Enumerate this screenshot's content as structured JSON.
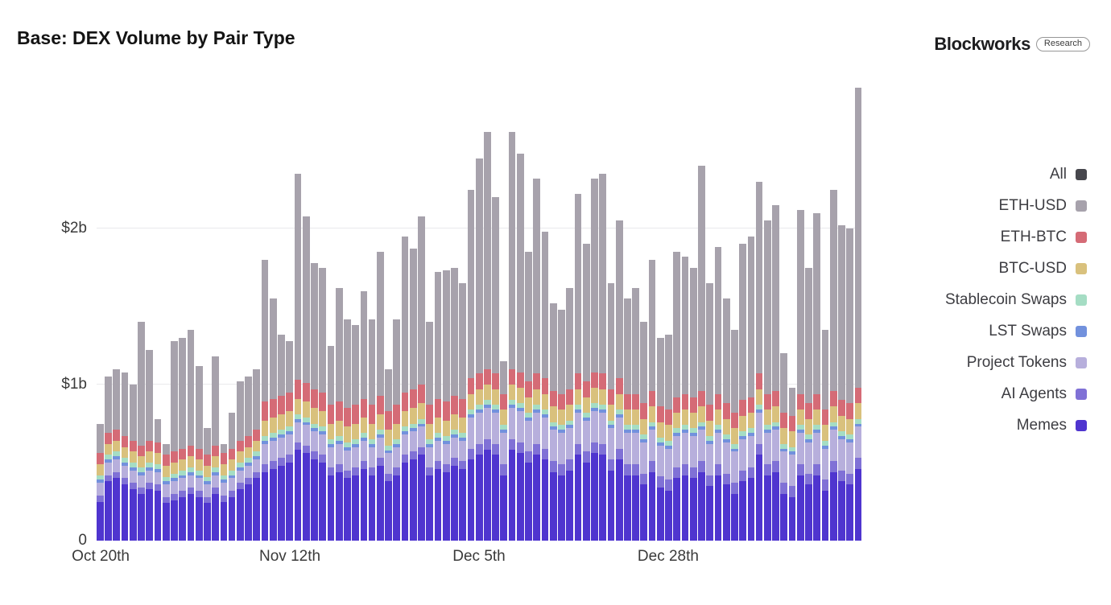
{
  "header": {
    "title": "Base: DEX Volume by Pair Type",
    "brand": "Blockworks",
    "brand_badge": "Research"
  },
  "legend": {
    "items": [
      {
        "label": "All",
        "color": "#47474d"
      },
      {
        "label": "ETH-USD",
        "color": "#a7a2ac"
      },
      {
        "label": "ETH-BTC",
        "color": "#d56b76"
      },
      {
        "label": "BTC-USD",
        "color": "#d9c17d"
      },
      {
        "label": "Stablecoin Swaps",
        "color": "#a5ddc4"
      },
      {
        "label": "LST Swaps",
        "color": "#7291dd"
      },
      {
        "label": "Project Tokens",
        "color": "#b7afdc"
      },
      {
        "label": "AI Agents",
        "color": "#8071d6"
      },
      {
        "label": "Memes",
        "color": "#4f35cf"
      }
    ]
  },
  "chart_data": {
    "type": "bar",
    "stacked": true,
    "title": "Base: DEX Volume by Pair Type",
    "unit": "USD billions per day",
    "ylim": [
      0,
      3
    ],
    "grid": true,
    "legend_position": "right",
    "y_ticks": [
      {
        "value": 0,
        "label": "0"
      },
      {
        "value": 1,
        "label": "$1b"
      },
      {
        "value": 2,
        "label": "$2b"
      }
    ],
    "x_count": 93,
    "x_ticks": [
      {
        "index": 0,
        "label": "Oct 20th"
      },
      {
        "index": 23,
        "label": "Nov 12th"
      },
      {
        "index": 46,
        "label": "Dec 5th"
      },
      {
        "index": 69,
        "label": "Dec 28th"
      }
    ],
    "stack_order_bottom_to_top": [
      "Memes",
      "AI Agents",
      "Project Tokens",
      "LST Swaps",
      "Stablecoin Swaps",
      "BTC-USD",
      "ETH-BTC",
      "ETH-USD"
    ],
    "series": [
      {
        "name": "Memes",
        "color": "#4f35cf",
        "values": [
          0.25,
          0.38,
          0.4,
          0.36,
          0.33,
          0.3,
          0.33,
          0.32,
          0.24,
          0.26,
          0.28,
          0.3,
          0.28,
          0.24,
          0.3,
          0.25,
          0.28,
          0.33,
          0.36,
          0.4,
          0.44,
          0.46,
          0.48,
          0.5,
          0.58,
          0.56,
          0.52,
          0.5,
          0.42,
          0.44,
          0.4,
          0.42,
          0.46,
          0.42,
          0.48,
          0.38,
          0.42,
          0.5,
          0.52,
          0.55,
          0.42,
          0.46,
          0.44,
          0.48,
          0.46,
          0.52,
          0.55,
          0.58,
          0.55,
          0.42,
          0.58,
          0.56,
          0.5,
          0.55,
          0.52,
          0.44,
          0.42,
          0.45,
          0.55,
          0.5,
          0.56,
          0.55,
          0.45,
          0.52,
          0.42,
          0.42,
          0.36,
          0.44,
          0.34,
          0.32,
          0.4,
          0.42,
          0.4,
          0.44,
          0.35,
          0.42,
          0.36,
          0.3,
          0.38,
          0.4,
          0.55,
          0.42,
          0.44,
          0.3,
          0.28,
          0.42,
          0.36,
          0.42,
          0.32,
          0.44,
          0.38,
          0.36,
          0.46
        ]
      },
      {
        "name": "AI Agents",
        "color": "#8071d6",
        "values": [
          0.04,
          0.04,
          0.04,
          0.04,
          0.04,
          0.04,
          0.04,
          0.04,
          0.04,
          0.04,
          0.04,
          0.04,
          0.04,
          0.04,
          0.04,
          0.04,
          0.04,
          0.04,
          0.04,
          0.04,
          0.05,
          0.05,
          0.05,
          0.05,
          0.05,
          0.05,
          0.05,
          0.05,
          0.05,
          0.05,
          0.05,
          0.05,
          0.05,
          0.05,
          0.05,
          0.05,
          0.05,
          0.05,
          0.05,
          0.05,
          0.05,
          0.05,
          0.05,
          0.05,
          0.05,
          0.07,
          0.07,
          0.07,
          0.07,
          0.07,
          0.07,
          0.07,
          0.07,
          0.07,
          0.07,
          0.07,
          0.07,
          0.07,
          0.07,
          0.07,
          0.07,
          0.07,
          0.07,
          0.07,
          0.07,
          0.07,
          0.07,
          0.07,
          0.07,
          0.07,
          0.07,
          0.07,
          0.07,
          0.07,
          0.07,
          0.07,
          0.07,
          0.07,
          0.07,
          0.07,
          0.07,
          0.07,
          0.07,
          0.07,
          0.07,
          0.07,
          0.07,
          0.07,
          0.07,
          0.07,
          0.07,
          0.07,
          0.07
        ]
      },
      {
        "name": "Project Tokens",
        "color": "#b7afdc",
        "values": [
          0.08,
          0.08,
          0.08,
          0.08,
          0.08,
          0.08,
          0.08,
          0.08,
          0.08,
          0.08,
          0.08,
          0.08,
          0.08,
          0.08,
          0.08,
          0.08,
          0.08,
          0.08,
          0.08,
          0.08,
          0.13,
          0.13,
          0.13,
          0.13,
          0.13,
          0.13,
          0.13,
          0.13,
          0.13,
          0.13,
          0.13,
          0.13,
          0.13,
          0.13,
          0.13,
          0.13,
          0.13,
          0.13,
          0.13,
          0.13,
          0.13,
          0.13,
          0.13,
          0.13,
          0.13,
          0.2,
          0.2,
          0.2,
          0.2,
          0.2,
          0.2,
          0.2,
          0.2,
          0.2,
          0.2,
          0.2,
          0.2,
          0.2,
          0.2,
          0.2,
          0.2,
          0.2,
          0.2,
          0.2,
          0.2,
          0.2,
          0.2,
          0.2,
          0.2,
          0.2,
          0.2,
          0.2,
          0.2,
          0.2,
          0.2,
          0.2,
          0.2,
          0.2,
          0.2,
          0.2,
          0.2,
          0.2,
          0.2,
          0.2,
          0.2,
          0.2,
          0.2,
          0.2,
          0.2,
          0.2,
          0.2,
          0.2,
          0.2
        ]
      },
      {
        "name": "LST Swaps",
        "color": "#7291dd",
        "values": [
          0.02,
          0.02,
          0.02,
          0.02,
          0.02,
          0.02,
          0.02,
          0.02,
          0.02,
          0.02,
          0.02,
          0.02,
          0.02,
          0.02,
          0.02,
          0.02,
          0.02,
          0.02,
          0.02,
          0.02,
          0.02,
          0.02,
          0.02,
          0.02,
          0.02,
          0.02,
          0.02,
          0.02,
          0.02,
          0.02,
          0.02,
          0.02,
          0.02,
          0.02,
          0.02,
          0.02,
          0.02,
          0.02,
          0.02,
          0.02,
          0.02,
          0.02,
          0.02,
          0.02,
          0.02,
          0.02,
          0.02,
          0.02,
          0.02,
          0.02,
          0.02,
          0.02,
          0.02,
          0.02,
          0.02,
          0.02,
          0.02,
          0.02,
          0.02,
          0.02,
          0.02,
          0.02,
          0.02,
          0.02,
          0.02,
          0.02,
          0.02,
          0.02,
          0.02,
          0.02,
          0.02,
          0.02,
          0.02,
          0.02,
          0.02,
          0.02,
          0.02,
          0.02,
          0.02,
          0.02,
          0.02,
          0.02,
          0.02,
          0.02,
          0.02,
          0.02,
          0.02,
          0.02,
          0.02,
          0.02,
          0.02,
          0.02,
          0.02
        ]
      },
      {
        "name": "Stablecoin Swaps",
        "color": "#a5ddc4",
        "values": [
          0.03,
          0.03,
          0.03,
          0.03,
          0.03,
          0.03,
          0.03,
          0.03,
          0.03,
          0.03,
          0.03,
          0.03,
          0.03,
          0.03,
          0.03,
          0.03,
          0.03,
          0.03,
          0.03,
          0.03,
          0.03,
          0.03,
          0.03,
          0.03,
          0.03,
          0.03,
          0.03,
          0.03,
          0.03,
          0.03,
          0.03,
          0.03,
          0.03,
          0.03,
          0.03,
          0.03,
          0.03,
          0.03,
          0.03,
          0.03,
          0.03,
          0.03,
          0.03,
          0.03,
          0.03,
          0.03,
          0.03,
          0.03,
          0.03,
          0.03,
          0.03,
          0.03,
          0.03,
          0.03,
          0.03,
          0.03,
          0.03,
          0.03,
          0.03,
          0.03,
          0.03,
          0.03,
          0.03,
          0.03,
          0.03,
          0.03,
          0.03,
          0.03,
          0.03,
          0.03,
          0.03,
          0.03,
          0.03,
          0.03,
          0.03,
          0.03,
          0.03,
          0.03,
          0.03,
          0.03,
          0.03,
          0.03,
          0.03,
          0.03,
          0.03,
          0.03,
          0.03,
          0.03,
          0.03,
          0.03,
          0.03,
          0.03,
          0.03
        ]
      },
      {
        "name": "BTC-USD",
        "color": "#d9c17d",
        "values": [
          0.07,
          0.07,
          0.07,
          0.07,
          0.07,
          0.07,
          0.07,
          0.07,
          0.07,
          0.07,
          0.07,
          0.07,
          0.07,
          0.07,
          0.07,
          0.07,
          0.07,
          0.07,
          0.07,
          0.07,
          0.1,
          0.1,
          0.1,
          0.1,
          0.1,
          0.1,
          0.1,
          0.1,
          0.1,
          0.1,
          0.1,
          0.1,
          0.1,
          0.1,
          0.1,
          0.1,
          0.1,
          0.1,
          0.1,
          0.1,
          0.1,
          0.1,
          0.1,
          0.1,
          0.1,
          0.1,
          0.1,
          0.1,
          0.1,
          0.1,
          0.1,
          0.1,
          0.1,
          0.1,
          0.1,
          0.1,
          0.1,
          0.1,
          0.1,
          0.1,
          0.1,
          0.1,
          0.1,
          0.1,
          0.1,
          0.1,
          0.1,
          0.1,
          0.1,
          0.1,
          0.1,
          0.1,
          0.1,
          0.1,
          0.1,
          0.1,
          0.1,
          0.1,
          0.1,
          0.1,
          0.1,
          0.1,
          0.1,
          0.1,
          0.1,
          0.1,
          0.1,
          0.1,
          0.1,
          0.1,
          0.1,
          0.1,
          0.1
        ]
      },
      {
        "name": "ETH-BTC",
        "color": "#d56b76",
        "values": [
          0.07,
          0.07,
          0.07,
          0.07,
          0.07,
          0.07,
          0.07,
          0.07,
          0.07,
          0.07,
          0.07,
          0.07,
          0.07,
          0.07,
          0.07,
          0.07,
          0.07,
          0.07,
          0.07,
          0.07,
          0.12,
          0.12,
          0.12,
          0.12,
          0.12,
          0.12,
          0.12,
          0.12,
          0.12,
          0.12,
          0.12,
          0.12,
          0.12,
          0.12,
          0.12,
          0.12,
          0.12,
          0.12,
          0.12,
          0.12,
          0.12,
          0.12,
          0.12,
          0.12,
          0.12,
          0.1,
          0.1,
          0.1,
          0.1,
          0.1,
          0.1,
          0.1,
          0.1,
          0.1,
          0.1,
          0.1,
          0.1,
          0.1,
          0.1,
          0.1,
          0.1,
          0.1,
          0.1,
          0.1,
          0.1,
          0.1,
          0.1,
          0.1,
          0.1,
          0.1,
          0.1,
          0.1,
          0.1,
          0.1,
          0.1,
          0.1,
          0.1,
          0.1,
          0.1,
          0.1,
          0.1,
          0.1,
          0.1,
          0.1,
          0.1,
          0.1,
          0.1,
          0.1,
          0.1,
          0.1,
          0.1,
          0.1,
          0.1
        ]
      },
      {
        "name": "ETH-USD",
        "color": "#a7a2ac",
        "values": [
          0.19,
          0.36,
          0.39,
          0.41,
          0.36,
          0.79,
          0.58,
          0.15,
          0.07,
          0.71,
          0.71,
          0.74,
          0.53,
          0.17,
          0.57,
          0.06,
          0.23,
          0.38,
          0.38,
          0.39,
          0.91,
          0.64,
          0.39,
          0.33,
          1.32,
          1.07,
          0.81,
          0.8,
          0.38,
          0.73,
          0.57,
          0.51,
          0.69,
          0.55,
          0.92,
          0.27,
          0.55,
          1.0,
          0.9,
          1.08,
          0.53,
          0.81,
          0.84,
          0.82,
          0.74,
          1.21,
          1.38,
          1.52,
          1.13,
          0.21,
          1.52,
          1.4,
          0.83,
          1.25,
          0.94,
          0.56,
          0.54,
          0.65,
          1.15,
          0.88,
          1.24,
          1.28,
          0.68,
          1.01,
          0.61,
          0.68,
          0.52,
          0.84,
          0.44,
          0.48,
          0.93,
          0.88,
          0.83,
          1.44,
          0.78,
          0.94,
          0.67,
          0.53,
          1.0,
          1.03,
          1.23,
          1.11,
          1.19,
          0.38,
          0.18,
          1.18,
          0.87,
          1.16,
          0.51,
          1.29,
          1.12,
          1.12,
          1.92
        ]
      }
    ]
  }
}
